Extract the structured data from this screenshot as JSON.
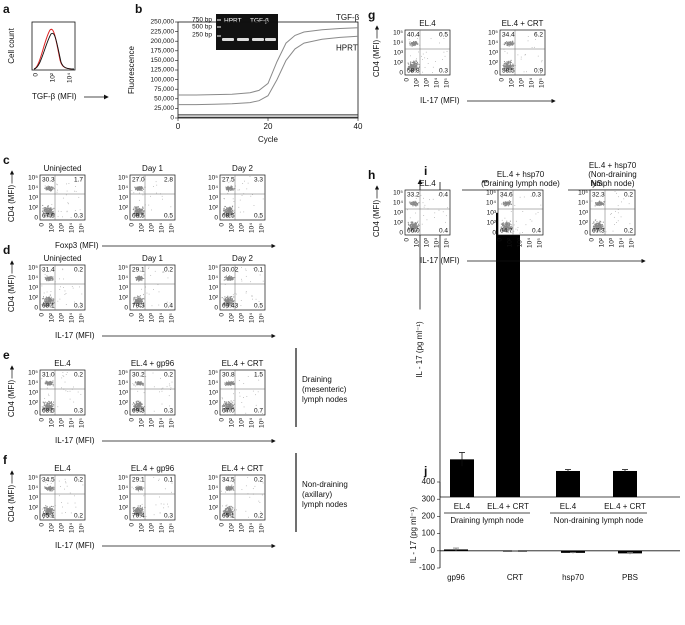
{
  "chart_data": [
    {
      "type": "line",
      "label": "b",
      "y_label": "Fluorescence",
      "x_label": "Cycle",
      "x": [
        0,
        4,
        8,
        12,
        16,
        18,
        20,
        22,
        24,
        26,
        28,
        32,
        36,
        40
      ],
      "series": [
        {
          "name": "TGF-β",
          "color": "#8a8a8a",
          "values": [
            60000,
            60000,
            61000,
            62000,
            66000,
            72000,
            90000,
            147000,
            195000,
            215000,
            224000,
            230000,
            233000,
            235000
          ]
        },
        {
          "name": "HPRT",
          "color": "#8a8a8a",
          "values": [
            35000,
            35000,
            36000,
            37000,
            40000,
            45000,
            58000,
            100000,
            150000,
            180000,
            195000,
            205000,
            210000,
            213000
          ]
        },
        {
          "color": "#333333",
          "values": [
            8000,
            8000,
            8000,
            8000,
            8000,
            8000,
            8000,
            8000,
            8000,
            8000,
            8000,
            8000,
            8000,
            8000
          ]
        },
        {
          "color": "#333333",
          "values": [
            2000,
            2000,
            2000,
            2000,
            2000,
            2000,
            2000,
            2000,
            2000,
            2000,
            2000,
            2000,
            2000,
            2000
          ]
        }
      ],
      "xlim": [
        0,
        40
      ],
      "xticks": [
        0,
        20,
        40
      ],
      "ylim": [
        0,
        250000
      ],
      "yticks": [
        0,
        {
          "value": 25000,
          "label": "25,000"
        },
        {
          "value": 50000,
          "label": "50,000"
        },
        {
          "value": 75000,
          "label": "75,000"
        },
        {
          "value": 100000,
          "label": "100,000"
        },
        {
          "value": 125000,
          "label": "125,000"
        },
        {
          "value": 150000,
          "label": "150,000"
        },
        {
          "value": 175000,
          "label": "175,000"
        },
        {
          "value": 200000,
          "label": "200,000"
        },
        {
          "value": 225000,
          "label": "225,000"
        },
        {
          "value": 250000,
          "label": "250,000"
        }
      ],
      "annotations": [
        "750 bp",
        "500 bp",
        "250 bp",
        "HPRT",
        "TGF-β"
      ]
    },
    {
      "type": "bar",
      "label": "i",
      "y_label": "IL - 17 (pg ml⁻¹)",
      "categories": [
        "EL.4",
        "EL.4 + CRT",
        "EL.4",
        "EL.4 + CRT"
      ],
      "groups": [
        "Draining lymph node",
        "Non-draining lymph node"
      ],
      "values": [
        55,
        415,
        38,
        38
      ],
      "errors": [
        10,
        18,
        2,
        2
      ],
      "color": "#000000",
      "ylim": [
        0,
        460
      ],
      "annotations": [
        "**",
        "NS"
      ]
    },
    {
      "type": "bar",
      "label": "j",
      "y_label": "IL - 17 (pg ml⁻¹)",
      "categories": [
        "gp96",
        "CRT",
        "hsp70",
        "PBS"
      ],
      "values": [
        8,
        -3,
        -12,
        -15
      ],
      "errors": [
        8,
        2,
        3,
        5
      ],
      "color": "#000000",
      "ylim": [
        -100,
        400
      ],
      "yticks": [
        -100,
        0,
        100,
        200,
        300,
        400
      ]
    }
  ],
  "panel_a": {
    "label": "a",
    "y_label": "Cell count",
    "x_label": "TGF-β (MFI)",
    "xticks": [
      "0",
      "10²",
      "10⁴"
    ]
  },
  "flow_ticks": [
    "0",
    "10²",
    "10³",
    "10⁴",
    "10⁵"
  ],
  "flow_rows": [
    {
      "label": "c",
      "y_label": "CD4 (MFI)",
      "x_label": "Foxp3 (MFI)",
      "plots": [
        {
          "title_lines": [
            "Uninjected"
          ],
          "quadrants": [
            "30.3",
            "1.7",
            "67.6",
            "0.3"
          ]
        },
        {
          "title_lines": [
            "Day 1"
          ],
          "quadrants": [
            "27.0",
            "2.8",
            "69.5",
            "0.5"
          ]
        },
        {
          "title_lines": [
            "Day 2"
          ],
          "quadrants": [
            "27.5",
            "3.3",
            "68.5",
            "0.5"
          ]
        }
      ]
    },
    {
      "label": "d",
      "y_label": "CD4 (MFI)",
      "x_label": "IL-17 (MFI)",
      "plots": [
        {
          "title_lines": [
            "Uninjected"
          ],
          "quadrants": [
            "31.4",
            "0.2",
            "68.1",
            "0.3"
          ]
        },
        {
          "title_lines": [
            "Day 1"
          ],
          "quadrants": [
            "29.1",
            "0.2",
            "70.3",
            "0.4"
          ]
        },
        {
          "title_lines": [
            "Day 2"
          ],
          "quadrants": [
            "30.02",
            "0.1",
            "69.43",
            "0.5"
          ]
        }
      ]
    },
    {
      "label": "e",
      "y_label": "CD4 (MFI)",
      "x_label": "IL-17 (MFI)",
      "note_lines": [
        "Draining",
        "(mesenteric)",
        "lymph nodes"
      ],
      "plots": [
        {
          "title_lines": [
            "EL.4"
          ],
          "quadrants": [
            "31.0",
            "0.2",
            "68.5",
            "0.3"
          ]
        },
        {
          "title_lines": [
            "EL.4 + gp96"
          ],
          "quadrants": [
            "30.2",
            "0.2",
            "69.3",
            "0.3"
          ]
        },
        {
          "title_lines": [
            "EL.4 + CRT"
          ],
          "quadrants": [
            "30.8",
            "1.5",
            "67.0",
            "0.7"
          ]
        }
      ]
    },
    {
      "label": "f",
      "y_label": "CD4 (MFI)",
      "x_label": "IL-17 (MFI)",
      "note_lines": [
        "Non-draining",
        "(axillary)",
        "lymph nodes"
      ],
      "plots": [
        {
          "title_lines": [
            "EL.4"
          ],
          "quadrants": [
            "34.5",
            "0.2",
            "65.1",
            "0.2"
          ]
        },
        {
          "title_lines": [
            "EL.4 + gp96"
          ],
          "quadrants": [
            "29.1",
            "0.1",
            "70.4",
            "0.3"
          ]
        },
        {
          "title_lines": [
            "EL.4 + CRT"
          ],
          "quadrants": [
            "34.5",
            "0.2",
            "65.1",
            "0.2"
          ]
        }
      ]
    },
    {
      "label": "g",
      "y_label": "CD4 (MFI)",
      "x_label": "IL-17 (MFI)",
      "plots": [
        {
          "title_lines": [
            "EL.4"
          ],
          "quadrants": [
            "40.4",
            "0.5",
            "58.8",
            "0.3"
          ]
        },
        {
          "title_lines": [
            "EL.4 + CRT"
          ],
          "quadrants": [
            "34.4",
            "6.2",
            "58.5",
            "0.9"
          ]
        }
      ]
    },
    {
      "label": "h",
      "y_label": "CD4 (MFI)",
      "x_label": "IL-17 (MFI)",
      "plots": [
        {
          "title_lines": [
            "EL.4"
          ],
          "quadrants": [
            "33.2",
            "0.4",
            "66.0",
            "0.4"
          ]
        },
        {
          "title_lines": [
            "EL.4 + hsp70",
            "(Draining lymph node)"
          ],
          "quadrants": [
            "34.6",
            "0.3",
            "64.7",
            "0.4"
          ]
        },
        {
          "title_lines": [
            "EL.4 + hsp70",
            "(Non-draining",
            "lymph node)"
          ],
          "quadrants": [
            "32.3",
            "0.2",
            "67.3",
            "0.2"
          ]
        }
      ]
    }
  ]
}
